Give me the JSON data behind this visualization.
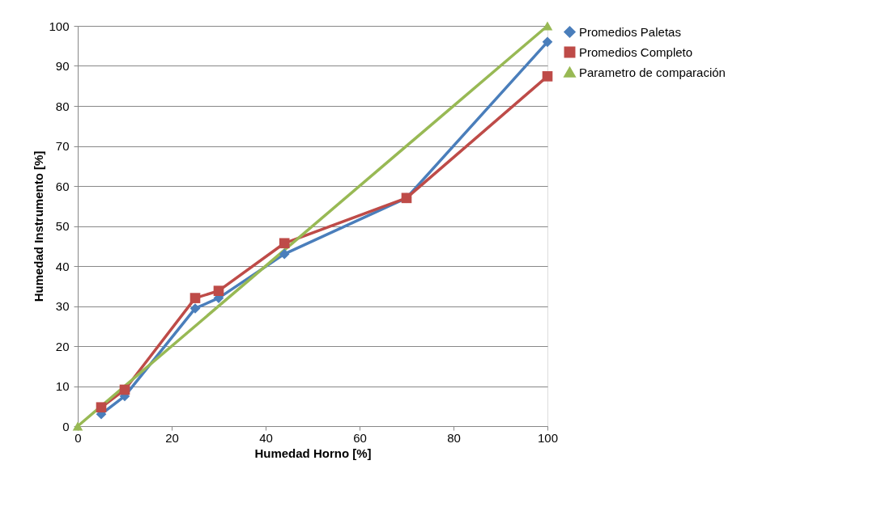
{
  "chart_data": {
    "type": "line",
    "xlabel": "Humedad Horno [%]",
    "ylabel": "Humedad Instrumento [%]",
    "xlim": [
      0,
      100
    ],
    "xticks": [
      0,
      20,
      40,
      60,
      80,
      100
    ],
    "ylim": [
      0,
      100
    ],
    "yticks": [
      0,
      10,
      20,
      30,
      40,
      50,
      60,
      70,
      80,
      90,
      100
    ],
    "grid": "y",
    "legend": "right",
    "line_style": "solid",
    "series": [
      {
        "name": "Promedios Paletas",
        "color": "#4a7ebb",
        "marker": "diamond",
        "x": [
          5,
          10,
          25,
          30,
          44,
          70,
          100
        ],
        "values": [
          3,
          7.5,
          29.4,
          32,
          43,
          57,
          96
        ]
      },
      {
        "name": "Promedios Completo",
        "color": "#be4b48",
        "marker": "square",
        "x": [
          5,
          10,
          25,
          30,
          44,
          70,
          100
        ],
        "values": [
          4.7,
          9.1,
          32,
          33.8,
          45.7,
          57,
          87.4
        ]
      },
      {
        "name": "Parametro de comparación",
        "color": "#98b954",
        "marker": "triangle",
        "x": [
          0,
          100
        ],
        "values": [
          0,
          100
        ]
      }
    ]
  }
}
